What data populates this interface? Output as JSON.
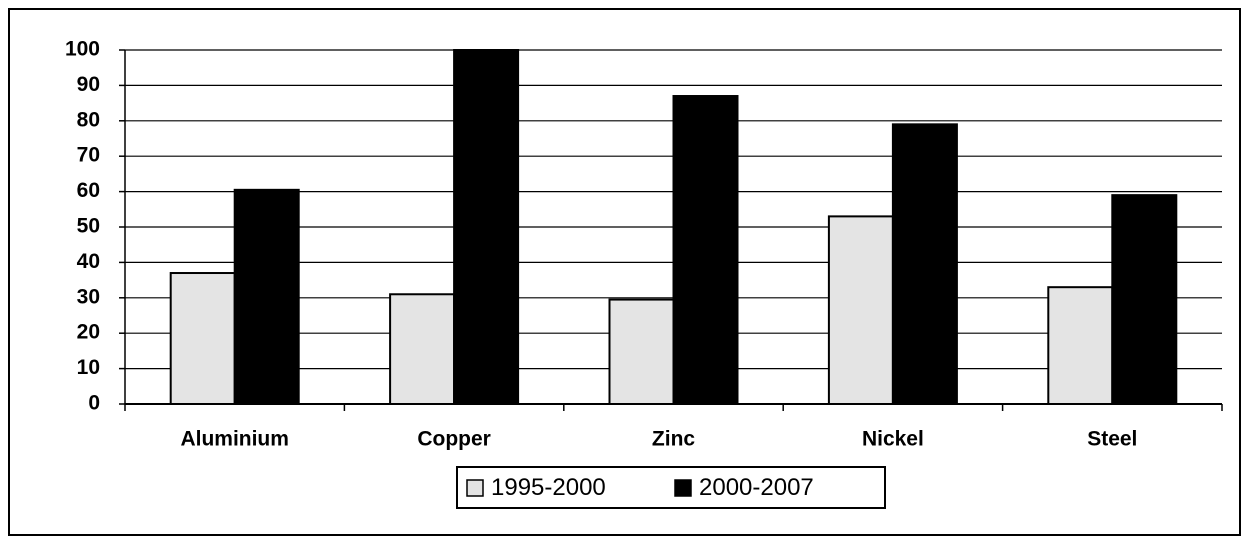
{
  "chart_data": {
    "type": "bar",
    "categories": [
      "Aluminium",
      "Copper",
      "Zinc",
      "Nickel",
      "Steel"
    ],
    "series": [
      {
        "name": "1995-2000",
        "color": "#e4e4e4",
        "values": [
          37,
          31,
          29.5,
          53,
          33
        ]
      },
      {
        "name": "2000-2007",
        "color": "#000000",
        "values": [
          60.5,
          100,
          87,
          79,
          59
        ]
      }
    ],
    "ylim": [
      0,
      100
    ],
    "yticks": [
      0,
      10,
      20,
      30,
      40,
      50,
      60,
      70,
      80,
      90,
      100
    ],
    "grid": true,
    "legend": "bottom"
  }
}
